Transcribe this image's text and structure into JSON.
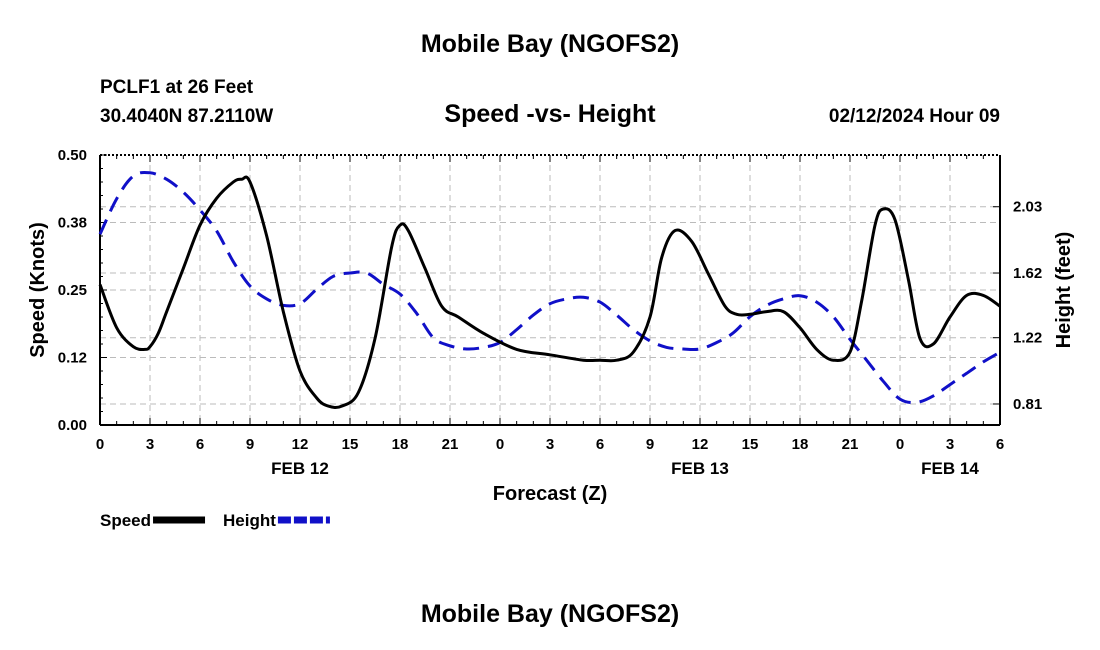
{
  "header": {
    "title": "Mobile Bay (NGOFS2)",
    "station": "PCLF1 at 26 Feet",
    "coords": "30.4040N  87.2110W",
    "subtitle": "Speed -vs- Height",
    "datetime": "02/12/2024 Hour 09",
    "bottom_title": "Mobile Bay (NGOFS2)"
  },
  "chart_data": {
    "type": "line",
    "title": "Speed -vs- Height",
    "xlabel": "Forecast (Z)",
    "ylabel_left": "Speed (Knots)",
    "ylabel_right": "Height (feet)",
    "x_unit": "hours since FEB 12 00Z",
    "xlim": [
      0,
      54
    ],
    "ylim_left": [
      0,
      0.5
    ],
    "ylim_right": [
      0.68,
      2.35
    ],
    "x_ticks": [
      0,
      3,
      6,
      9,
      12,
      15,
      18,
      21,
      24,
      27,
      30,
      33,
      36,
      39,
      42,
      45,
      48,
      51,
      54
    ],
    "x_tick_labels": [
      "0",
      "3",
      "6",
      "9",
      "12",
      "15",
      "18",
      "21",
      "0",
      "3",
      "6",
      "9",
      "12",
      "15",
      "18",
      "21",
      "0",
      "3",
      "6"
    ],
    "y_left_ticks": [
      0,
      0.125,
      0.25,
      0.375,
      0.5
    ],
    "y_left_tick_labels": [
      "0.00",
      "0.12",
      "0.25",
      "0.38",
      "0.50"
    ],
    "y_right_ticks": [
      0.81,
      1.22,
      1.62,
      2.03
    ],
    "y_right_tick_labels": [
      "0.81",
      "1.22",
      "1.62",
      "2.03"
    ],
    "date_labels": [
      {
        "x": 12,
        "label": "FEB 12"
      },
      {
        "x": 36,
        "label": "FEB 13"
      },
      {
        "x": 51,
        "label": "FEB 14"
      }
    ],
    "grid": true,
    "series": [
      {
        "name": "Speed",
        "axis": "left",
        "color": "#000000",
        "style": "solid",
        "x": [
          0,
          1,
          2,
          2.7,
          3,
          3.5,
          4,
          5,
          6,
          7,
          8,
          8.5,
          9,
          10,
          11,
          12,
          13,
          13.7,
          14.5,
          15.5,
          16.5,
          17.5,
          18,
          18.5,
          19.5,
          20.5,
          21.5,
          23,
          25,
          27,
          29,
          30,
          31,
          32,
          33,
          33.7,
          34.5,
          35.5,
          36.5,
          37.5,
          38.2,
          39,
          40,
          41,
          42,
          43,
          44,
          45,
          45.7,
          46.5,
          47,
          47.7,
          48.5,
          49.2,
          50,
          51,
          52,
          53,
          54
        ],
        "values": [
          0.26,
          0.18,
          0.145,
          0.14,
          0.145,
          0.17,
          0.21,
          0.29,
          0.37,
          0.42,
          0.45,
          0.455,
          0.45,
          0.35,
          0.21,
          0.1,
          0.05,
          0.035,
          0.035,
          0.06,
          0.16,
          0.33,
          0.37,
          0.36,
          0.29,
          0.22,
          0.2,
          0.17,
          0.14,
          0.13,
          0.12,
          0.12,
          0.12,
          0.135,
          0.2,
          0.31,
          0.36,
          0.34,
          0.28,
          0.22,
          0.205,
          0.205,
          0.21,
          0.21,
          0.18,
          0.14,
          0.12,
          0.135,
          0.23,
          0.37,
          0.4,
          0.38,
          0.27,
          0.16,
          0.15,
          0.2,
          0.24,
          0.24,
          0.22
        ]
      },
      {
        "name": "Height",
        "axis": "right",
        "color": "#1010c8",
        "style": "dashed",
        "x": [
          0,
          1,
          2,
          3,
          4,
          5,
          6,
          7,
          8,
          9,
          10,
          11,
          12,
          13,
          14,
          15,
          16,
          17,
          18,
          19,
          20,
          21,
          22,
          23,
          24,
          25,
          26,
          27,
          28,
          29,
          30,
          31,
          32,
          33,
          34,
          35,
          36,
          37,
          38,
          39,
          40,
          41,
          42,
          43,
          44,
          45,
          46,
          47,
          48,
          49,
          50,
          51,
          52,
          53,
          54
        ],
        "values": [
          1.86,
          2.08,
          2.22,
          2.24,
          2.2,
          2.12,
          2.01,
          1.88,
          1.69,
          1.54,
          1.46,
          1.42,
          1.43,
          1.52,
          1.6,
          1.62,
          1.62,
          1.55,
          1.49,
          1.37,
          1.22,
          1.17,
          1.15,
          1.16,
          1.19,
          1.27,
          1.36,
          1.43,
          1.46,
          1.47,
          1.44,
          1.36,
          1.27,
          1.2,
          1.16,
          1.15,
          1.15,
          1.19,
          1.25,
          1.35,
          1.42,
          1.46,
          1.48,
          1.44,
          1.35,
          1.21,
          1.08,
          0.95,
          0.84,
          0.82,
          0.86,
          0.93,
          1.0,
          1.07,
          1.13
        ]
      }
    ],
    "legend": [
      {
        "label": "Speed",
        "color": "#000000",
        "style": "solid"
      },
      {
        "label": "Height",
        "color": "#1010c8",
        "style": "dashed"
      }
    ],
    "legend_position": "bottom-left"
  }
}
